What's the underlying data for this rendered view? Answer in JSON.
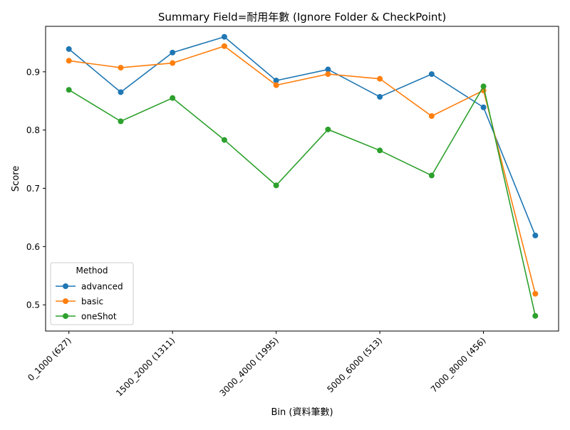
{
  "chart_data": {
    "type": "line",
    "title": "Summary Field=耐用年數 (Ignore Folder & CheckPoint)",
    "xlabel": "Bin (資料筆數)",
    "ylabel": "Score",
    "x_tick_labels": [
      "0_1000 (627)",
      "1500_2000 (1311)",
      "3000_4000 (1995)",
      "5000_6000 (513)",
      "7000_8000 (456)"
    ],
    "x_tick_positions": [
      0,
      2,
      4,
      6,
      8
    ],
    "n_points": 10,
    "ylim": [
      0.455,
      0.978
    ],
    "y_ticks": [
      0.5,
      0.6,
      0.7,
      0.8,
      0.9
    ],
    "y_tick_labels": [
      "0.5",
      "0.6",
      "0.7",
      "0.8",
      "0.9"
    ],
    "grid": false,
    "legend": {
      "title": "Method",
      "placement": "lower-left"
    },
    "series": [
      {
        "name": "advanced",
        "color": "#1f77b4",
        "values": [
          0.939,
          0.865,
          0.933,
          0.96,
          0.885,
          0.904,
          0.857,
          0.896,
          0.839,
          0.619
        ]
      },
      {
        "name": "basic",
        "color": "#ff7f0e",
        "values": [
          0.919,
          0.907,
          0.915,
          0.944,
          0.877,
          0.896,
          0.888,
          0.824,
          0.868,
          0.519
        ]
      },
      {
        "name": "oneShot",
        "color": "#2ca02c",
        "values": [
          0.869,
          0.815,
          0.855,
          0.783,
          0.705,
          0.801,
          0.765,
          0.722,
          0.875,
          0.481
        ]
      }
    ]
  }
}
